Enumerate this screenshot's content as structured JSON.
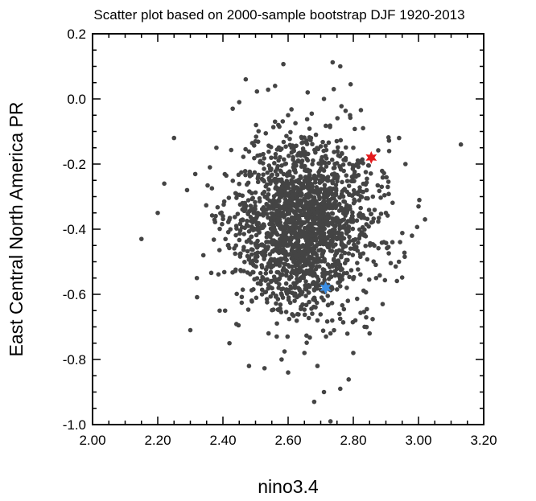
{
  "chart_data": {
    "type": "scatter",
    "title": "Scatter plot based on 2000-sample bootstrap DJF 1920-2013",
    "xlabel": "nino3.4",
    "ylabel": "East Central North America PR",
    "xlim": [
      2.0,
      3.2
    ],
    "ylim": [
      -1.0,
      0.2
    ],
    "x_ticks": [
      "2.00",
      "2.20",
      "2.40",
      "2.60",
      "2.80",
      "3.00",
      "3.20"
    ],
    "y_ticks": [
      "0.2",
      "0.0",
      "-0.2",
      "-0.4",
      "-0.6",
      "-0.8",
      "-1.0"
    ],
    "grid": false,
    "point_color": "#444444",
    "series": [
      {
        "values": [
          {
            "x": 2.63,
            "y": -0.38
          },
          {
            "x": 2.7,
            "y": -0.35
          },
          {
            "x": 2.58,
            "y": -0.42
          },
          {
            "x": 2.66,
            "y": -0.3
          },
          {
            "x": 2.72,
            "y": -0.45
          },
          {
            "x": 2.55,
            "y": -0.33
          },
          {
            "x": 2.61,
            "y": -0.25
          },
          {
            "x": 2.68,
            "y": -0.5
          },
          {
            "x": 2.75,
            "y": -0.38
          },
          {
            "x": 2.5,
            "y": -0.4
          },
          {
            "x": 2.64,
            "y": -0.55
          },
          {
            "x": 2.77,
            "y": -0.28
          },
          {
            "x": 2.59,
            "y": -0.2
          },
          {
            "x": 2.71,
            "y": -0.22
          },
          {
            "x": 2.46,
            "y": -0.32
          },
          {
            "x": 2.82,
            "y": -0.42
          },
          {
            "x": 2.53,
            "y": -0.48
          },
          {
            "x": 2.67,
            "y": -0.12
          },
          {
            "x": 2.62,
            "y": -0.62
          },
          {
            "x": 2.78,
            "y": -0.58
          },
          {
            "x": 2.44,
            "y": -0.45
          },
          {
            "x": 2.86,
            "y": -0.3
          },
          {
            "x": 2.57,
            "y": -0.08
          },
          {
            "x": 2.69,
            "y": -0.68
          },
          {
            "x": 2.73,
            "y": -0.72
          },
          {
            "x": 2.4,
            "y": -0.36
          },
          {
            "x": 2.9,
            "y": -0.35
          },
          {
            "x": 2.52,
            "y": -0.6
          },
          {
            "x": 2.8,
            "y": -0.15
          },
          {
            "x": 2.65,
            "y": -0.78
          },
          {
            "x": 2.15,
            "y": -0.43
          },
          {
            "x": 2.2,
            "y": -0.35
          },
          {
            "x": 2.22,
            "y": -0.26
          },
          {
            "x": 2.25,
            "y": -0.12
          },
          {
            "x": 2.29,
            "y": -0.28
          },
          {
            "x": 2.3,
            "y": -0.71
          },
          {
            "x": 2.32,
            "y": -0.55
          },
          {
            "x": 2.34,
            "y": -0.48
          },
          {
            "x": 2.36,
            "y": -0.21
          },
          {
            "x": 2.43,
            "y": -0.03
          },
          {
            "x": 2.48,
            "y": -0.82
          },
          {
            "x": 2.56,
            "y": 0.04
          },
          {
            "x": 2.6,
            "y": -0.84
          },
          {
            "x": 2.66,
            "y": 0.02
          },
          {
            "x": 2.71,
            "y": 0.0
          },
          {
            "x": 2.74,
            "y": 0.03
          },
          {
            "x": 2.76,
            "y": 0.1
          },
          {
            "x": 2.69,
            "y": -0.82
          },
          {
            "x": 2.71,
            "y": -0.9
          },
          {
            "x": 2.68,
            "y": -0.93
          },
          {
            "x": 2.73,
            "y": -0.99
          },
          {
            "x": 2.76,
            "y": -0.89
          },
          {
            "x": 2.8,
            "y": -0.78
          },
          {
            "x": 2.85,
            "y": -0.72
          },
          {
            "x": 2.89,
            "y": -0.63
          },
          {
            "x": 2.94,
            "y": -0.5
          },
          {
            "x": 2.98,
            "y": -0.42
          },
          {
            "x": 3.0,
            "y": -0.33
          },
          {
            "x": 3.02,
            "y": -0.37
          },
          {
            "x": 2.96,
            "y": -0.2
          },
          {
            "x": 2.91,
            "y": -0.16
          },
          {
            "x": 3.13,
            "y": -0.14
          },
          {
            "x": 2.47,
            "y": 0.06
          },
          {
            "x": 2.45,
            "y": -0.01
          },
          {
            "x": 2.38,
            "y": -0.15
          },
          {
            "x": 2.39,
            "y": -0.65
          },
          {
            "x": 2.42,
            "y": -0.75
          },
          {
            "x": 2.54,
            "y": -0.72
          },
          {
            "x": 2.58,
            "y": -0.8
          },
          {
            "x": 2.83,
            "y": -0.09
          },
          {
            "x": 2.87,
            "y": -0.55
          },
          {
            "x": 2.92,
            "y": -0.44
          },
          {
            "x": 2.5,
            "y": -0.13
          },
          {
            "x": 2.6,
            "y": -0.05
          },
          {
            "x": 2.79,
            "y": -0.05
          }
        ]
      },
      {
        "values": [
          {
            "x": 2.855,
            "y": -0.18
          }
        ],
        "color": "#e41a1c",
        "marker": "star"
      },
      {
        "values": [
          {
            "x": 2.715,
            "y": -0.58
          }
        ],
        "color": "#3b8fe6",
        "marker": "star"
      }
    ]
  }
}
